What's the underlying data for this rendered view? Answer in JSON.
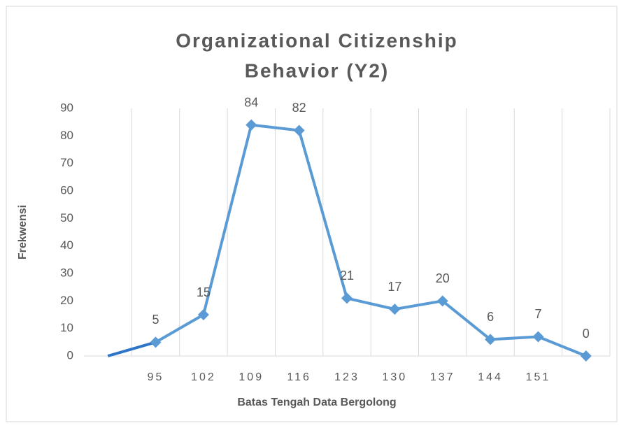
{
  "chart_data": {
    "type": "line",
    "title": "Organizational Citizenship",
    "subtitle": "Behavior (Y2)",
    "x_label": "Batas Tengah Data Bergolong",
    "y_label": "Frekwensi",
    "categories": [
      null,
      "95",
      "102",
      "109",
      "116",
      "123",
      "130",
      "137",
      "144",
      "151",
      null
    ],
    "series": [
      {
        "color": "#2e75c8",
        "values": [
          0,
          5,
          null,
          null,
          null,
          null,
          null,
          null,
          null,
          null,
          null
        ]
      },
      {
        "color": "#5b9bd5",
        "values": [
          null,
          5,
          15,
          84,
          82,
          21,
          17,
          20,
          6,
          7,
          0
        ],
        "markers": true,
        "labels": true
      }
    ],
    "ylim": [
      0,
      90
    ],
    "yticks": [
      0,
      10,
      20,
      30,
      40,
      50,
      60,
      70,
      80,
      90
    ],
    "grid": "x"
  }
}
